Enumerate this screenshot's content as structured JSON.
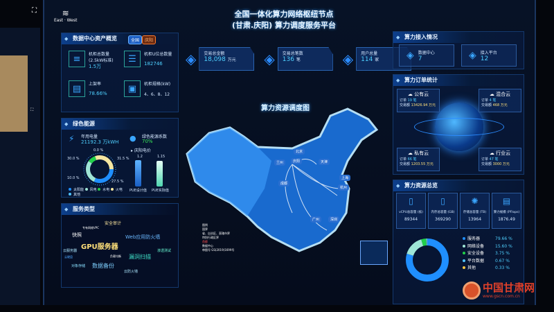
{
  "header": {
    "title_line1": "全国一体化算力网络枢纽节点",
    "title_line2": "(甘肃.庆阳) 算力调度服务平台",
    "logo_text": "East · West"
  },
  "stats": [
    {
      "label": "交易总金额",
      "value": "18,098",
      "unit": "万元",
      "icon": "coin-stack-icon"
    },
    {
      "label": "交易总笔数",
      "value": "136",
      "unit": "笔",
      "icon": "cube-stack-icon"
    },
    {
      "label": "用户总量",
      "value": "114",
      "unit": "家",
      "icon": "user-pin-icon"
    }
  ],
  "assets": {
    "title": "数据中心资产概览",
    "tab_all": "全国",
    "tab_local": "庆阳",
    "items": [
      {
        "label": "机柜总数量",
        "sub": "(2.5kW标准)",
        "value": "1.5万",
        "icon": "database-icon"
      },
      {
        "label": "机柜U位总数量",
        "value": "182746",
        "icon": "server-rack-icon"
      },
      {
        "label": "上架率",
        "value": "78.66%",
        "icon": "server-box-icon"
      },
      {
        "label": "机柜规格(kW)",
        "value": "4、6、8、12",
        "icon": "cabinet-icon"
      }
    ]
  },
  "green": {
    "title": "绿色能源",
    "annual_label": "年用电量",
    "annual_value": "21192.3 万kWH",
    "coef_label": "绿色能源系数",
    "coef_value": "70%",
    "price_label": "庆阳电价",
    "donut_labels": [
      "0.0 %",
      "30.0 %",
      "10.0 %",
      "31.5 %",
      "27.5 %"
    ],
    "legend": [
      "太阳能",
      "风电",
      "水电",
      "火电",
      "其他"
    ],
    "pue": [
      {
        "label": "PUE设计值",
        "value": "1.2",
        "level": 1.2
      },
      {
        "label": "PUE实际值",
        "value": "1.15",
        "level": 1.15
      }
    ]
  },
  "service": {
    "title": "服务类型",
    "words": [
      "安全审计",
      "专有网络VPC",
      "快照",
      "GPU服务器",
      "Web应用防火墙",
      "云服务器",
      "云硬盘",
      "漏洞扫描",
      "渗透测试",
      "负载均衡",
      "对象存储",
      "数据备份",
      "云防火墙"
    ]
  },
  "map": {
    "title": "算力资源调度图",
    "cities": [
      "北京",
      "天津",
      "兰州",
      "庆阳",
      "成都",
      "上海",
      "杭州",
      "广州",
      "深圳"
    ],
    "legend_title": "图例",
    "legend": [
      "国界",
      "省、自治区、直辖市界",
      "特别行政区界",
      "首都",
      "数据中心"
    ],
    "note": "审图号 GS(2019)1699号"
  },
  "access": {
    "title": "算力接入情况",
    "items": [
      {
        "label": "数据中心",
        "value": "7",
        "icon": "layers-icon"
      },
      {
        "label": "接入平台",
        "value": "12",
        "icon": "platform-icon"
      }
    ]
  },
  "orders": {
    "title": "算力订单统计",
    "order_label": "订单",
    "amount_label": "交易额",
    "items": [
      {
        "name": "公有云",
        "count": "19 笔",
        "amount": "13426.94 万元"
      },
      {
        "name": "混合云",
        "count": "4 笔",
        "amount": "468 万元"
      },
      {
        "name": "私有云",
        "count": "66 笔",
        "amount": "1203.55 万元"
      },
      {
        "name": "行业云",
        "count": "47 笔",
        "amount": "3000 万元"
      }
    ]
  },
  "resources": {
    "title": "算力资源总览",
    "items": [
      {
        "label": "vCPU总容量 (核)",
        "value": "89344"
      },
      {
        "label": "内存总容量 (GB)",
        "value": "369290"
      },
      {
        "label": "存储总容量 (TB)",
        "value": "13964"
      },
      {
        "label": "算力规模 (PFlops)",
        "value": "1876.49"
      }
    ],
    "breakdown": [
      {
        "label": "服务器",
        "pct": "79.66 %",
        "v": 79.66,
        "color": "#1f8fff"
      },
      {
        "label": "网络设备",
        "pct": "15.60 %",
        "v": 15.6,
        "color": "#9fe6d6"
      },
      {
        "label": "安全设备",
        "pct": "3.75 %",
        "v": 3.75,
        "color": "#22d04a"
      },
      {
        "label": "平台数据",
        "pct": "0.67 %",
        "v": 0.67,
        "color": "#4fc3ff"
      },
      {
        "label": "其他",
        "pct": "0.33 %",
        "v": 0.33,
        "color": "#f5c542"
      }
    ]
  },
  "watermark": {
    "name": "中国甘肃网",
    "url": "www.gscn.com.cn"
  }
}
